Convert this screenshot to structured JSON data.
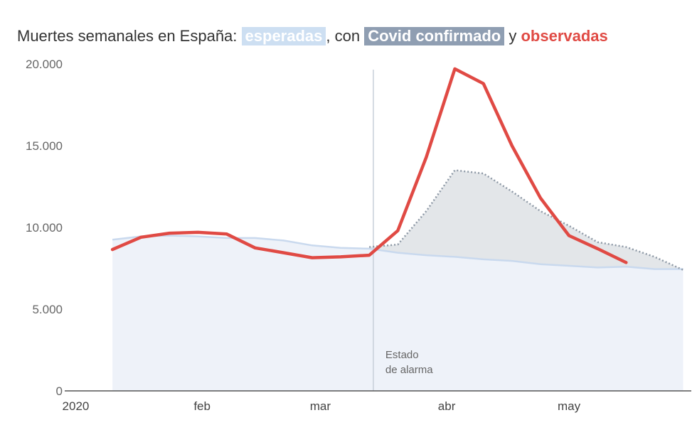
{
  "chart_data": {
    "type": "area",
    "title_parts": {
      "prefix": "Muertes semanales en España:",
      "expected": "esperadas",
      "sep1": ", con",
      "covid": "Covid confirmado",
      "sep2": "y",
      "observed": "observadas"
    },
    "ylim": [
      0,
      20000
    ],
    "yticks": [
      {
        "value": 0,
        "label": "0"
      },
      {
        "value": 5000,
        "label": "5.000"
      },
      {
        "value": 10000,
        "label": "10.000"
      },
      {
        "value": 15000,
        "label": "15.000"
      },
      {
        "value": 20000,
        "label": "20.000"
      }
    ],
    "xlim": [
      "2019-12-30",
      "2020-05-31"
    ],
    "xticks": [
      {
        "date": "2020-01-01",
        "label": "2020"
      },
      {
        "date": "2020-02-01",
        "label": "feb"
      },
      {
        "date": "2020-03-01",
        "label": "mar"
      },
      {
        "date": "2020-04-01",
        "label": "abr"
      },
      {
        "date": "2020-05-01",
        "label": "may"
      }
    ],
    "annotation": {
      "date": "2020-03-14",
      "lines": [
        "Estado",
        "de alarma"
      ]
    },
    "colors": {
      "expected": "#eef2f9",
      "expected_line": "#c9d9ee",
      "covid_fill": "#e3e6e9",
      "covid_line": "#8e99a6",
      "observed": "#e04a44",
      "axis": "#555555",
      "marker": "#c7cfd9"
    },
    "series": [
      {
        "name": "esperadas",
        "dates": [
          "2020-01-10",
          "2020-01-17",
          "2020-01-24",
          "2020-01-31",
          "2020-02-07",
          "2020-02-14",
          "2020-02-21",
          "2020-02-28",
          "2020-03-06",
          "2020-03-13",
          "2020-03-20",
          "2020-03-27",
          "2020-04-03",
          "2020-04-10",
          "2020-04-17",
          "2020-04-24",
          "2020-05-01",
          "2020-05-08",
          "2020-05-15",
          "2020-05-22",
          "2020-05-29"
        ],
        "values": [
          9250,
          9450,
          9500,
          9450,
          9350,
          9350,
          9200,
          8900,
          8750,
          8700,
          8450,
          8300,
          8200,
          8050,
          7950,
          7750,
          7650,
          7550,
          7600,
          7450,
          7450
        ]
      },
      {
        "name": "Covid confirmado",
        "dates": [
          "2020-03-13",
          "2020-03-20",
          "2020-03-27",
          "2020-04-03",
          "2020-04-10",
          "2020-04-17",
          "2020-04-24",
          "2020-05-01",
          "2020-05-08",
          "2020-05-15",
          "2020-05-22",
          "2020-05-29"
        ],
        "values": [
          8800,
          8950,
          11000,
          13500,
          13300,
          12200,
          11000,
          10100,
          9100,
          8800,
          8200,
          7400
        ]
      },
      {
        "name": "observadas",
        "dates": [
          "2020-01-10",
          "2020-01-17",
          "2020-01-24",
          "2020-01-31",
          "2020-02-07",
          "2020-02-14",
          "2020-02-21",
          "2020-02-28",
          "2020-03-06",
          "2020-03-13",
          "2020-03-20",
          "2020-03-27",
          "2020-04-03",
          "2020-04-10",
          "2020-04-17",
          "2020-04-24",
          "2020-05-01",
          "2020-05-08",
          "2020-05-15"
        ],
        "values": [
          8650,
          9400,
          9650,
          9700,
          9600,
          8750,
          8450,
          8150,
          8200,
          8300,
          9800,
          14300,
          19700,
          18800,
          15000,
          11800,
          9500,
          8700,
          7850
        ]
      }
    ]
  }
}
